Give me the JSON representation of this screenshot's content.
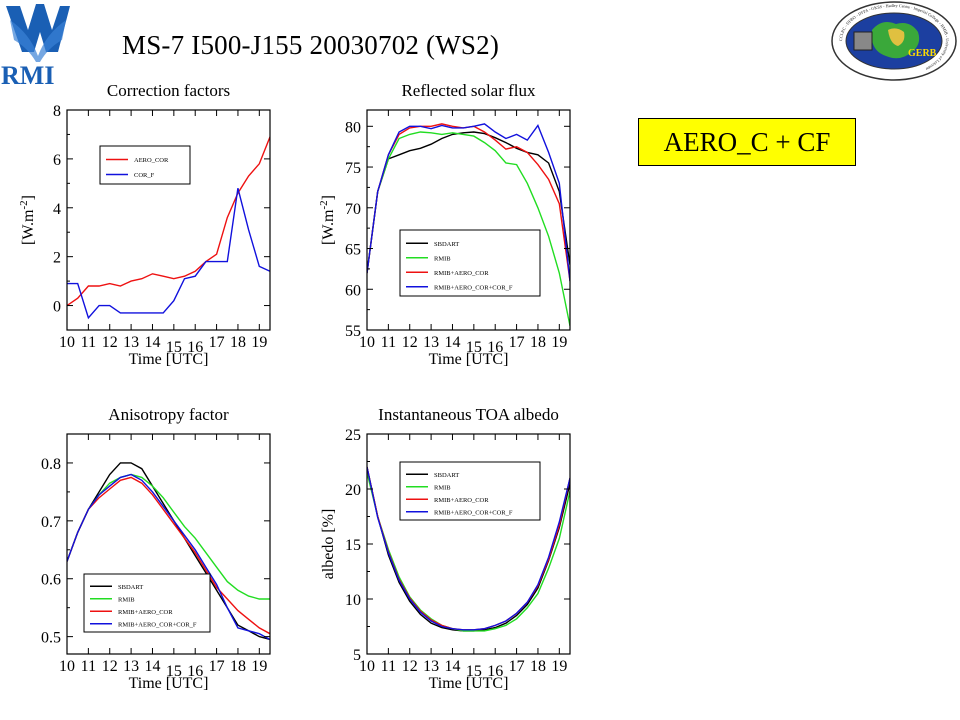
{
  "header": {
    "title": "MS-7 I500-J155 20030702 (WS2)",
    "tag": "AERO_C + CF",
    "left_logo_text": "RMI",
    "right_logo_text": "GERB",
    "right_logo_ring_text": "CCLRC - DFBO - DFPA - GKSS - Hadley Centre · Imperial College - RMIB - University of Leicester"
  },
  "colors": {
    "black": "#000000",
    "green": "#22dd22",
    "red": "#ee1111",
    "blue": "#1111dd",
    "tag_bg": "#ffff00"
  },
  "chart_data": [
    {
      "type": "line",
      "title": "Correction factors",
      "xlabel": "Time [UTC]",
      "ylabel": "[W.m-2]",
      "ylim": [
        -1,
        8
      ],
      "xlim": [
        10,
        19.5
      ],
      "yticks": [
        0,
        2,
        4,
        6,
        8
      ],
      "xticks": [
        10,
        11,
        12,
        13,
        14,
        15,
        16,
        17,
        18,
        19
      ],
      "grid": false,
      "legend": "top-left",
      "series": [
        {
          "name": "AERO_COR",
          "color": "red",
          "x": [
            10,
            10.5,
            11,
            11.5,
            12,
            12.5,
            13,
            13.5,
            14,
            14.5,
            15,
            15.5,
            16,
            16.5,
            17,
            17.5,
            18,
            18.5,
            19,
            19.5
          ],
          "y": [
            0,
            0.3,
            0.8,
            0.8,
            0.9,
            0.8,
            1.0,
            1.1,
            1.3,
            1.2,
            1.1,
            1.2,
            1.4,
            1.8,
            2.1,
            3.6,
            4.6,
            5.3,
            5.8,
            6.9
          ]
        },
        {
          "name": "COR_F",
          "color": "blue",
          "x": [
            10,
            10.5,
            11,
            11.5,
            12,
            12.5,
            13,
            13.5,
            14,
            14.5,
            15,
            15.5,
            16,
            16.5,
            17,
            17.5,
            18,
            18.5,
            19,
            19.5
          ],
          "y": [
            0.9,
            0.9,
            -0.5,
            0,
            0,
            -0.3,
            -0.3,
            -0.3,
            -0.3,
            -0.3,
            0.2,
            1.1,
            1.2,
            1.8,
            1.8,
            1.8,
            4.8,
            3.1,
            1.6,
            1.4
          ]
        }
      ]
    },
    {
      "type": "line",
      "title": "Reflected solar flux",
      "xlabel": "Time [UTC]",
      "ylabel": "[W.m-2]",
      "ylim": [
        55,
        82
      ],
      "xlim": [
        10,
        19.5
      ],
      "yticks": [
        55,
        60,
        65,
        70,
        75,
        80
      ],
      "xticks": [
        10,
        11,
        12,
        13,
        14,
        15,
        16,
        17,
        18,
        19
      ],
      "grid": false,
      "legend": "bottom-center",
      "series": [
        {
          "name": "SBDART",
          "color": "black",
          "x": [
            10,
            10.5,
            11,
            11.5,
            12,
            12.5,
            13,
            13.5,
            14,
            14.5,
            15,
            15.5,
            16,
            16.5,
            17,
            17.5,
            18,
            18.5,
            19,
            19.5
          ],
          "y": [
            62,
            72,
            76,
            76.5,
            77,
            77.3,
            77.8,
            78.5,
            79,
            79.2,
            79.3,
            79.1,
            78.6,
            78,
            77.3,
            76.8,
            76.5,
            75.5,
            72,
            63
          ]
        },
        {
          "name": "RMIB",
          "color": "green",
          "x": [
            10,
            10.5,
            11,
            11.5,
            12,
            12.5,
            13,
            13.5,
            14,
            14.5,
            15,
            15.5,
            16,
            16.5,
            17,
            17.5,
            18,
            18.5,
            19,
            19.5
          ],
          "y": [
            62,
            72,
            76,
            78.5,
            79,
            79.3,
            79.2,
            79,
            79.2,
            79,
            78.8,
            78,
            77,
            75.5,
            75.3,
            73,
            70,
            66.5,
            62,
            55.5
          ]
        },
        {
          "name": "RMIB+AERO_COR",
          "color": "red",
          "x": [
            10,
            10.5,
            11,
            11.5,
            12,
            12.5,
            13,
            13.5,
            14,
            14.5,
            15,
            15.5,
            16,
            16.5,
            17,
            17.5,
            18,
            18.5,
            19,
            19.5
          ],
          "y": [
            62,
            72,
            76.5,
            79,
            79.8,
            80,
            80,
            80.3,
            80,
            79.8,
            80,
            79.3,
            78.3,
            77.2,
            77.5,
            76.8,
            75.3,
            73.5,
            70.5,
            61
          ]
        },
        {
          "name": "RMIB+AERO_COR+COR_F",
          "color": "blue",
          "x": [
            10,
            10.5,
            11,
            11.5,
            12,
            12.5,
            13,
            13.5,
            14,
            14.5,
            15,
            15.5,
            16,
            16.5,
            17,
            17.5,
            18,
            18.5,
            19,
            19.5
          ],
          "y": [
            62,
            72,
            76.5,
            79.3,
            80,
            80,
            79.7,
            80.1,
            79.8,
            79.8,
            80,
            80.3,
            79.3,
            78.5,
            79,
            78.3,
            80.1,
            76.8,
            73,
            61
          ]
        }
      ]
    },
    {
      "type": "line",
      "title": "Anisotropy factor",
      "xlabel": "Time [UTC]",
      "ylabel": "",
      "ylim": [
        0.47,
        0.85
      ],
      "xlim": [
        10,
        19.5
      ],
      "yticks": [
        0.5,
        0.6,
        0.7,
        0.8
      ],
      "xticks": [
        10,
        11,
        12,
        13,
        14,
        15,
        16,
        17,
        18,
        19
      ],
      "grid": false,
      "legend": "bottom-left",
      "series": [
        {
          "name": "SBDART",
          "color": "black",
          "x": [
            10,
            10.5,
            11,
            11.5,
            12,
            12.5,
            13,
            13.5,
            14,
            14.5,
            15,
            15.5,
            16,
            16.5,
            17,
            17.5,
            18,
            18.5,
            19,
            19.5
          ],
          "y": [
            0.63,
            0.68,
            0.72,
            0.75,
            0.78,
            0.8,
            0.8,
            0.79,
            0.76,
            0.73,
            0.7,
            0.67,
            0.64,
            0.61,
            0.58,
            0.55,
            0.52,
            0.51,
            0.5,
            0.495
          ]
        },
        {
          "name": "RMIB",
          "color": "green",
          "x": [
            10,
            10.5,
            11,
            11.5,
            12,
            12.5,
            13,
            13.5,
            14,
            14.5,
            15,
            15.5,
            16,
            16.5,
            17,
            17.5,
            18,
            18.5,
            19,
            19.5
          ],
          "y": [
            0.63,
            0.68,
            0.72,
            0.745,
            0.765,
            0.775,
            0.78,
            0.775,
            0.76,
            0.74,
            0.715,
            0.69,
            0.67,
            0.645,
            0.62,
            0.595,
            0.58,
            0.57,
            0.565,
            0.565
          ]
        },
        {
          "name": "RMIB+AERO_COR",
          "color": "red",
          "x": [
            10,
            10.5,
            11,
            11.5,
            12,
            12.5,
            13,
            13.5,
            14,
            14.5,
            15,
            15.5,
            16,
            16.5,
            17,
            17.5,
            18,
            18.5,
            19,
            19.5
          ],
          "y": [
            0.63,
            0.68,
            0.72,
            0.74,
            0.755,
            0.77,
            0.775,
            0.765,
            0.745,
            0.72,
            0.695,
            0.67,
            0.645,
            0.615,
            0.585,
            0.565,
            0.545,
            0.53,
            0.515,
            0.505
          ]
        },
        {
          "name": "RMIB+AERO_COR+COR_F",
          "color": "blue",
          "x": [
            10,
            10.5,
            11,
            11.5,
            12,
            12.5,
            13,
            13.5,
            14,
            14.5,
            15,
            15.5,
            16,
            16.5,
            17,
            17.5,
            18,
            18.5,
            19,
            19.5
          ],
          "y": [
            0.63,
            0.68,
            0.72,
            0.745,
            0.76,
            0.775,
            0.78,
            0.77,
            0.75,
            0.725,
            0.7,
            0.675,
            0.65,
            0.62,
            0.59,
            0.55,
            0.515,
            0.51,
            0.505,
            0.495
          ]
        }
      ]
    },
    {
      "type": "line",
      "title": "Instantaneous TOA albedo",
      "xlabel": "Time [UTC]",
      "ylabel": "albedo [%]",
      "ylim": [
        5,
        25
      ],
      "xlim": [
        10,
        19.5
      ],
      "yticks": [
        5,
        10,
        15,
        20,
        25
      ],
      "xticks": [
        10,
        11,
        12,
        13,
        14,
        15,
        16,
        17,
        18,
        19
      ],
      "grid": false,
      "legend": "top-center",
      "series": [
        {
          "name": "SBDART",
          "color": "black",
          "x": [
            10,
            10.5,
            11,
            11.5,
            12,
            12.5,
            13,
            13.5,
            14,
            14.5,
            15,
            15.5,
            16,
            16.5,
            17,
            17.5,
            18,
            18.5,
            19,
            19.5
          ],
          "y": [
            22,
            17.5,
            14,
            11.5,
            9.8,
            8.6,
            7.8,
            7.4,
            7.2,
            7.1,
            7.1,
            7.2,
            7.4,
            7.8,
            8.5,
            9.5,
            11,
            13.5,
            16.5,
            20.5
          ]
        },
        {
          "name": "RMIB",
          "color": "green",
          "x": [
            10,
            10.5,
            11,
            11.5,
            12,
            12.5,
            13,
            13.5,
            14,
            14.5,
            15,
            15.5,
            16,
            16.5,
            17,
            17.5,
            18,
            18.5,
            19,
            19.5
          ],
          "y": [
            21.5,
            17.5,
            14.5,
            12,
            10.2,
            9,
            8.2,
            7.6,
            7.3,
            7.1,
            7.1,
            7.1,
            7.3,
            7.6,
            8.2,
            9.2,
            10.5,
            12.8,
            15.5,
            19.8
          ]
        },
        {
          "name": "RMIB+AERO_COR",
          "color": "red",
          "x": [
            10,
            10.5,
            11,
            11.5,
            12,
            12.5,
            13,
            13.5,
            14,
            14.5,
            15,
            15.5,
            16,
            16.5,
            17,
            17.5,
            18,
            18.5,
            19,
            19.5
          ],
          "y": [
            22,
            17.5,
            14.3,
            11.8,
            10.1,
            8.9,
            8.1,
            7.6,
            7.3,
            7.2,
            7.2,
            7.3,
            7.6,
            8,
            8.7,
            9.7,
            11.2,
            13.6,
            16.7,
            21
          ]
        },
        {
          "name": "RMIB+AERO_COR+COR_F",
          "color": "blue",
          "x": [
            10,
            10.5,
            11,
            11.5,
            12,
            12.5,
            13,
            13.5,
            14,
            14.5,
            15,
            15.5,
            16,
            16.5,
            17,
            17.5,
            18,
            18.5,
            19,
            19.5
          ],
          "y": [
            22,
            17.4,
            14.2,
            11.7,
            10,
            8.8,
            8,
            7.5,
            7.3,
            7.2,
            7.2,
            7.3,
            7.6,
            8,
            8.7,
            9.7,
            11.3,
            13.8,
            17,
            21
          ]
        }
      ]
    }
  ]
}
